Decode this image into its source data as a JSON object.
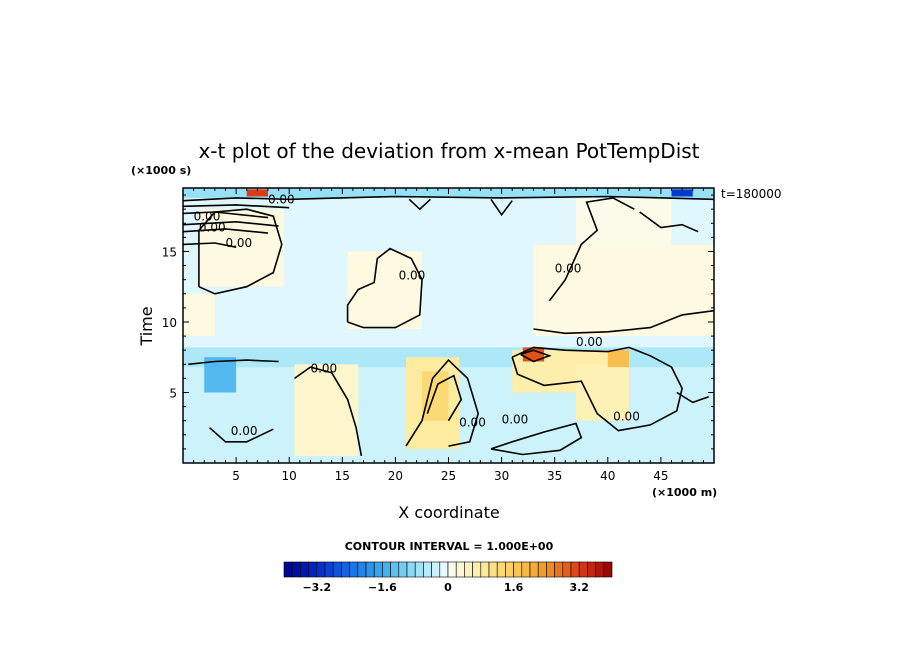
{
  "chart_data": {
    "type": "heatmap",
    "title": "x-t plot of the deviation from x-mean PotTempDist",
    "xlabel": "X coordinate",
    "ylabel": "Time",
    "x_unit": "(×1000 m)",
    "y_unit": "(×1000 s)",
    "xlim": [
      0,
      50
    ],
    "ylim": [
      0,
      19.5
    ],
    "x_ticks": [
      5,
      10,
      15,
      20,
      25,
      30,
      35,
      40,
      45
    ],
    "y_ticks": [
      5,
      10,
      15
    ],
    "time_stamp": "t=180000",
    "contour_interval_text": "CONTOUR INTERVAL = 1.000E+00",
    "contour_label": "0.00",
    "colorbar": {
      "min": -4,
      "max": 4,
      "step": 0.2,
      "tick_values": [
        -3.2,
        -1.6,
        0,
        1.6,
        3.2
      ],
      "tick_labels": [
        "−3.2",
        "−1.6",
        "0",
        "1.6",
        "3.2"
      ]
    },
    "anomaly_regions": [
      {
        "x": 0,
        "y": 0,
        "w": 50,
        "h": 8,
        "value": -0.3
      },
      {
        "x": 0,
        "y": 8,
        "w": 50,
        "h": 11.5,
        "value": -0.15
      },
      {
        "x": 0,
        "y": 6.8,
        "w": 50,
        "h": 1.4,
        "value": -0.6
      },
      {
        "x": 1.5,
        "y": 12.5,
        "w": 8,
        "h": 5.5,
        "value": 0.2
      },
      {
        "x": 0,
        "y": 9,
        "w": 3,
        "h": 3,
        "value": 0.2
      },
      {
        "x": 15.5,
        "y": 9.5,
        "w": 7,
        "h": 5.5,
        "value": 0.2
      },
      {
        "x": 33,
        "y": 9,
        "w": 17,
        "h": 6.5,
        "value": 0.2
      },
      {
        "x": 37,
        "y": 15.5,
        "w": 9,
        "h": 3.5,
        "value": 0.15
      },
      {
        "x": 10.5,
        "y": 0.5,
        "w": 6,
        "h": 6.5,
        "value": 0.4
      },
      {
        "x": 21,
        "y": 1,
        "w": 5,
        "h": 6.5,
        "value": 0.8
      },
      {
        "x": 22.5,
        "y": 3,
        "w": 2.5,
        "h": 3.5,
        "value": 1.3
      },
      {
        "x": 31,
        "y": 5,
        "w": 10,
        "h": 3,
        "value": 0.7
      },
      {
        "x": 37,
        "y": 3,
        "w": 5,
        "h": 4,
        "value": 0.6
      },
      {
        "x": 32,
        "y": 7.2,
        "w": 2,
        "h": 1,
        "value": 3.0
      },
      {
        "x": 40,
        "y": 6.8,
        "w": 2,
        "h": 1.2,
        "value": 1.8
      },
      {
        "x": 0,
        "y": 18.8,
        "w": 50,
        "h": 0.7,
        "value": -0.8
      },
      {
        "x": 6,
        "y": 18.9,
        "w": 2,
        "h": 0.5,
        "value": 3.2
      },
      {
        "x": 46,
        "y": 18.9,
        "w": 2,
        "h": 0.5,
        "value": -3.0
      },
      {
        "x": 2,
        "y": 5,
        "w": 3,
        "h": 2.5,
        "value": -1.4
      }
    ],
    "contours": [
      [
        [
          1.5,
          12.5
        ],
        [
          3,
          12
        ],
        [
          6,
          12.5
        ],
        [
          8.5,
          13.5
        ],
        [
          9.3,
          15.5
        ],
        [
          8.5,
          17.5
        ],
        [
          6,
          18
        ],
        [
          3,
          17.8
        ],
        [
          1.5,
          16.5
        ],
        [
          1.5,
          12.5
        ]
      ],
      [
        [
          15.5,
          10
        ],
        [
          17,
          9.6
        ],
        [
          20,
          9.6
        ],
        [
          22.3,
          10.5
        ],
        [
          22.5,
          13
        ],
        [
          21.5,
          14.5
        ],
        [
          19.5,
          15.2
        ],
        [
          18.3,
          14.5
        ],
        [
          18,
          12.8
        ],
        [
          16.5,
          12.3
        ],
        [
          15.5,
          11.2
        ],
        [
          15.5,
          10
        ]
      ],
      [
        [
          33,
          9.5
        ],
        [
          36,
          9.2
        ],
        [
          40,
          9.3
        ],
        [
          44,
          9.6
        ],
        [
          47,
          10.5
        ],
        [
          50,
          10.8
        ]
      ],
      [
        [
          34.5,
          11.5
        ],
        [
          36,
          13
        ],
        [
          37.5,
          15.5
        ],
        [
          39,
          16.5
        ],
        [
          38,
          18.5
        ],
        [
          40.5,
          18.8
        ],
        [
          42.5,
          18
        ]
      ],
      [
        [
          0.5,
          7
        ],
        [
          3,
          7.2
        ],
        [
          6,
          7.3
        ],
        [
          9,
          7.2
        ]
      ],
      [
        [
          10.5,
          6
        ],
        [
          12,
          6.8
        ],
        [
          14,
          6.4
        ],
        [
          15.5,
          4.5
        ],
        [
          16.3,
          2.5
        ],
        [
          16.8,
          0.5
        ]
      ],
      [
        [
          2.5,
          2.5
        ],
        [
          4,
          1.5
        ],
        [
          6,
          1.5
        ],
        [
          8.5,
          2.4
        ]
      ],
      [
        [
          21,
          1.2
        ],
        [
          22.5,
          3
        ],
        [
          23.5,
          6
        ],
        [
          25,
          7.3
        ],
        [
          26.8,
          6
        ],
        [
          27.8,
          3.5
        ],
        [
          27,
          1.5
        ],
        [
          25,
          1.2
        ]
      ],
      [
        [
          23,
          3.5
        ],
        [
          24,
          5.6
        ],
        [
          25.5,
          6.2
        ],
        [
          26.2,
          4.5
        ],
        [
          25,
          3
        ]
      ],
      [
        [
          29,
          1
        ],
        [
          31,
          1.5
        ],
        [
          34,
          2.2
        ],
        [
          37,
          2.8
        ],
        [
          37.5,
          1.8
        ],
        [
          35.5,
          0.9
        ],
        [
          32,
          0.6
        ],
        [
          29,
          1
        ]
      ],
      [
        [
          31,
          7.5
        ],
        [
          33,
          8.2
        ],
        [
          36,
          8.0
        ],
        [
          40,
          7.9
        ],
        [
          42,
          8.2
        ],
        [
          44,
          7.6
        ],
        [
          46,
          6.8
        ],
        [
          47,
          5.3
        ],
        [
          46.5,
          3.7
        ],
        [
          44,
          2.7
        ],
        [
          41,
          2.3
        ],
        [
          39,
          3.5
        ],
        [
          37.5,
          5.8
        ],
        [
          34,
          5.5
        ],
        [
          31.5,
          6.3
        ],
        [
          31,
          7.5
        ]
      ],
      [
        [
          31.8,
          7.7
        ],
        [
          33,
          8.0
        ],
        [
          34.5,
          7.6
        ],
        [
          33,
          7.2
        ],
        [
          31.8,
          7.7
        ]
      ],
      [
        [
          46.5,
          5
        ],
        [
          48,
          4.3
        ],
        [
          49.5,
          4.7
        ]
      ],
      [
        [
          0,
          18.6
        ],
        [
          5,
          18.8
        ],
        [
          10,
          18.7
        ],
        [
          20,
          18.9
        ],
        [
          30,
          18.8
        ],
        [
          40,
          18.9
        ],
        [
          50,
          18.7
        ]
      ],
      [
        [
          0,
          17.7
        ],
        [
          3,
          17.8
        ],
        [
          8,
          17.4
        ]
      ],
      [
        [
          0,
          16.4
        ],
        [
          4,
          16.6
        ],
        [
          8,
          16.3
        ]
      ],
      [
        [
          0,
          15.5
        ],
        [
          3,
          15.6
        ],
        [
          5,
          15.3
        ]
      ],
      [
        [
          0,
          16.9
        ],
        [
          5,
          17.1
        ],
        [
          9,
          16.8
        ]
      ],
      [
        [
          29,
          18.7
        ],
        [
          30,
          17.6
        ],
        [
          31,
          18.6
        ]
      ],
      [
        [
          21.3,
          18.7
        ],
        [
          22.3,
          18.0
        ],
        [
          23.3,
          18.7
        ]
      ],
      [
        [
          43,
          17.8
        ],
        [
          45,
          16.7
        ],
        [
          47,
          16.9
        ],
        [
          48.5,
          16.4
        ]
      ],
      [
        [
          0,
          18.2
        ],
        [
          5,
          18.3
        ],
        [
          10,
          18.1
        ]
      ]
    ],
    "label_positions": [
      [
        1,
        17.2
      ],
      [
        1.5,
        16.4
      ],
      [
        4,
        15.3
      ],
      [
        8,
        18.4
      ],
      [
        12,
        6.4
      ],
      [
        4.5,
        2
      ],
      [
        30,
        2.8
      ],
      [
        26,
        2.6
      ],
      [
        37,
        8.3
      ],
      [
        40.5,
        3
      ],
      [
        35,
        13.5
      ],
      [
        20.3,
        13
      ]
    ]
  }
}
